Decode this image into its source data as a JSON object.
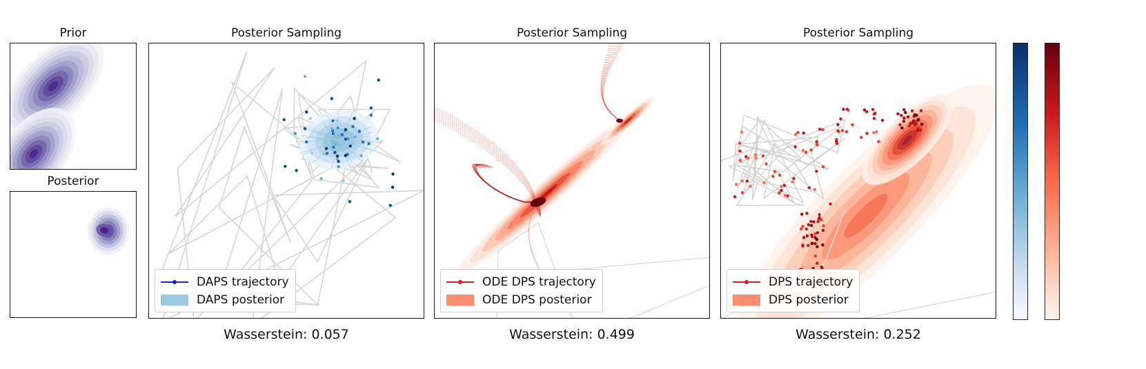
{
  "chart_data": [
    {
      "type": "contour",
      "title": "Prior",
      "description_series": [
        {
          "name": "mode-low",
          "center": [
            -1.8,
            -1.8
          ]
        },
        {
          "name": "mode-high",
          "center": [
            1.2,
            1.3
          ]
        }
      ],
      "colormap": "Purples"
    },
    {
      "type": "contour",
      "title": "Posterior",
      "description_series": [
        {
          "name": "posterior-mode",
          "center": [
            0.9,
            0.6
          ]
        }
      ],
      "colormap": "Purples"
    },
    {
      "type": "scatter",
      "title": "Posterior Sampling",
      "metric_label": "Wasserstein: 0.057",
      "wasserstein": 0.057,
      "legend": [
        "DAPS trajectory",
        "DAPS posterior"
      ],
      "colormap": "Blues",
      "legend_colors": {
        "trajectory": "#1f1fd6",
        "posterior": "#9ecae1"
      }
    },
    {
      "type": "scatter",
      "title": "Posterior Sampling",
      "metric_label": "Wasserstein: 0.499",
      "wasserstein": 0.499,
      "legend": [
        "ODE DPS trajectory",
        "ODE DPS posterior"
      ],
      "colormap": "Reds",
      "legend_colors": {
        "trajectory": "#e31a1c",
        "posterior": "#fc8d6e"
      }
    },
    {
      "type": "scatter",
      "title": "Posterior Sampling",
      "metric_label": "Wasserstein: 0.252",
      "wasserstein": 0.252,
      "legend": [
        "DPS trajectory",
        "DPS posterior"
      ],
      "colormap": "Reds",
      "legend_colors": {
        "trajectory": "#e31a1c",
        "posterior": "#fc8d6e"
      }
    }
  ],
  "titles": {
    "prior": "Prior",
    "posterior": "Posterior",
    "sampling_daps": "Posterior Sampling",
    "sampling_ode": "Posterior Sampling",
    "sampling_dps": "Posterior Sampling"
  },
  "metrics": {
    "daps": "Wasserstein: 0.057",
    "ode": "Wasserstein: 0.499",
    "dps": "Wasserstein: 0.252"
  },
  "legends": {
    "daps": {
      "trajectory": "DAPS trajectory",
      "posterior": "DAPS posterior"
    },
    "ode": {
      "trajectory": "ODE DPS trajectory",
      "posterior": "ODE DPS posterior"
    },
    "dps": {
      "trajectory": "DPS trajectory",
      "posterior": "DPS posterior"
    }
  },
  "colorbars": [
    {
      "name": "Blues",
      "top": "#08306b",
      "mid": "#6baed6",
      "bottom": "#f7fbff"
    },
    {
      "name": "Reds",
      "top": "#67000d",
      "mid": "#fb6a4a",
      "bottom": "#fff5f0"
    }
  ]
}
